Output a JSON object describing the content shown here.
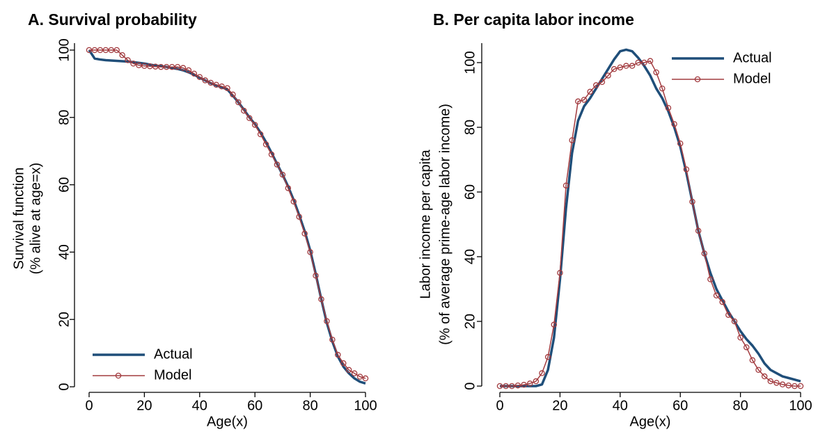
{
  "chart_data": [
    {
      "type": "line",
      "title": "A.  Survival probability",
      "x_label": "Age(x)",
      "y_label": [
        "Survival function",
        "(% alive at age=x)"
      ],
      "x": [
        0,
        2,
        4,
        6,
        8,
        10,
        12,
        14,
        16,
        18,
        20,
        22,
        24,
        26,
        28,
        30,
        32,
        34,
        36,
        38,
        40,
        42,
        44,
        46,
        48,
        50,
        52,
        54,
        56,
        58,
        60,
        62,
        64,
        66,
        68,
        70,
        72,
        74,
        76,
        78,
        80,
        82,
        84,
        86,
        88,
        90,
        92,
        94,
        96,
        98,
        100
      ],
      "series": [
        {
          "name": "Actual",
          "color": "#1f4e79",
          "marker": false,
          "values": [
            100,
            97.5,
            97.2,
            97,
            96.9,
            96.8,
            96.7,
            96.6,
            96.4,
            96.2,
            96,
            95.7,
            95.4,
            95.2,
            95,
            94.7,
            94.4,
            94,
            93.4,
            92.7,
            91.8,
            91,
            90.2,
            89.5,
            89,
            88.3,
            86.5,
            84.5,
            82.3,
            80,
            78,
            75.5,
            72.7,
            69.5,
            66.2,
            63,
            59.5,
            55.5,
            51,
            46.2,
            40.5,
            33.5,
            26,
            19,
            13.5,
            9,
            6,
            4,
            2.5,
            1.5,
            1
          ]
        },
        {
          "name": "Model",
          "color": "#a23b3f",
          "marker": true,
          "values": [
            100,
            100,
            100,
            100,
            100,
            100,
            98.5,
            97,
            96,
            95.5,
            95.3,
            95.2,
            95.1,
            95,
            95,
            95,
            95,
            94.7,
            94,
            93,
            92,
            91,
            90.3,
            89.7,
            89.2,
            88.7,
            86.8,
            84.5,
            82,
            79.8,
            77.8,
            75,
            72,
            69,
            66,
            63,
            59,
            55,
            50.5,
            45.5,
            40,
            33,
            26,
            19.5,
            14,
            9.5,
            7,
            5,
            4,
            3,
            2.5
          ]
        }
      ],
      "xlim": [
        0,
        100
      ],
      "xticks": [
        0,
        20,
        40,
        60,
        80,
        100
      ],
      "ylim": [
        0,
        100
      ],
      "yticks": [
        0,
        20,
        40,
        60,
        80,
        100
      ],
      "legend": "lower left"
    },
    {
      "type": "line",
      "title": "B.  Per capita labor income",
      "x_label": "Age(x)",
      "y_label": [
        "Labor income per capita",
        "(% of average prime-age labor income)"
      ],
      "x": [
        0,
        2,
        4,
        6,
        8,
        10,
        12,
        14,
        16,
        18,
        20,
        22,
        24,
        26,
        28,
        30,
        32,
        34,
        36,
        38,
        40,
        42,
        44,
        46,
        48,
        50,
        52,
        54,
        56,
        58,
        60,
        62,
        64,
        66,
        68,
        70,
        72,
        74,
        76,
        78,
        80,
        82,
        84,
        86,
        88,
        90,
        92,
        94,
        96,
        98,
        100
      ],
      "series": [
        {
          "name": "Actual",
          "color": "#1f4e79",
          "marker": false,
          "values": [
            0,
            0,
            0,
            0,
            0,
            0,
            0,
            0.5,
            5,
            15,
            33,
            55,
            72,
            82,
            86.5,
            89,
            92,
            95,
            98,
            101,
            103.5,
            104,
            103.5,
            101.5,
            99,
            96,
            92,
            89,
            85,
            80,
            74,
            66,
            57,
            48,
            41,
            35,
            30,
            26.5,
            23,
            20,
            17,
            14.5,
            12.5,
            10,
            7,
            5,
            4,
            3,
            2.5,
            2,
            1.5
          ]
        },
        {
          "name": "Model",
          "color": "#a23b3f",
          "marker": true,
          "values": [
            0,
            0,
            0,
            0.2,
            0.4,
            0.8,
            1.5,
            4,
            9,
            19,
            35,
            62,
            76,
            88,
            88.5,
            91,
            93,
            94,
            96,
            98,
            98.5,
            99,
            99,
            100,
            100,
            100.5,
            97,
            92,
            86,
            81,
            75,
            67,
            57,
            48,
            41,
            33,
            28,
            26,
            22,
            20,
            15,
            12,
            8,
            5,
            3,
            1.5,
            1,
            0.5,
            0.2,
            0,
            0
          ]
        }
      ],
      "xlim": [
        0,
        100
      ],
      "xticks": [
        0,
        20,
        40,
        60,
        80,
        100
      ],
      "ylim": [
        0,
        100
      ],
      "yticks": [
        0,
        20,
        40,
        60,
        80,
        100
      ],
      "legend": "upper right"
    }
  ]
}
